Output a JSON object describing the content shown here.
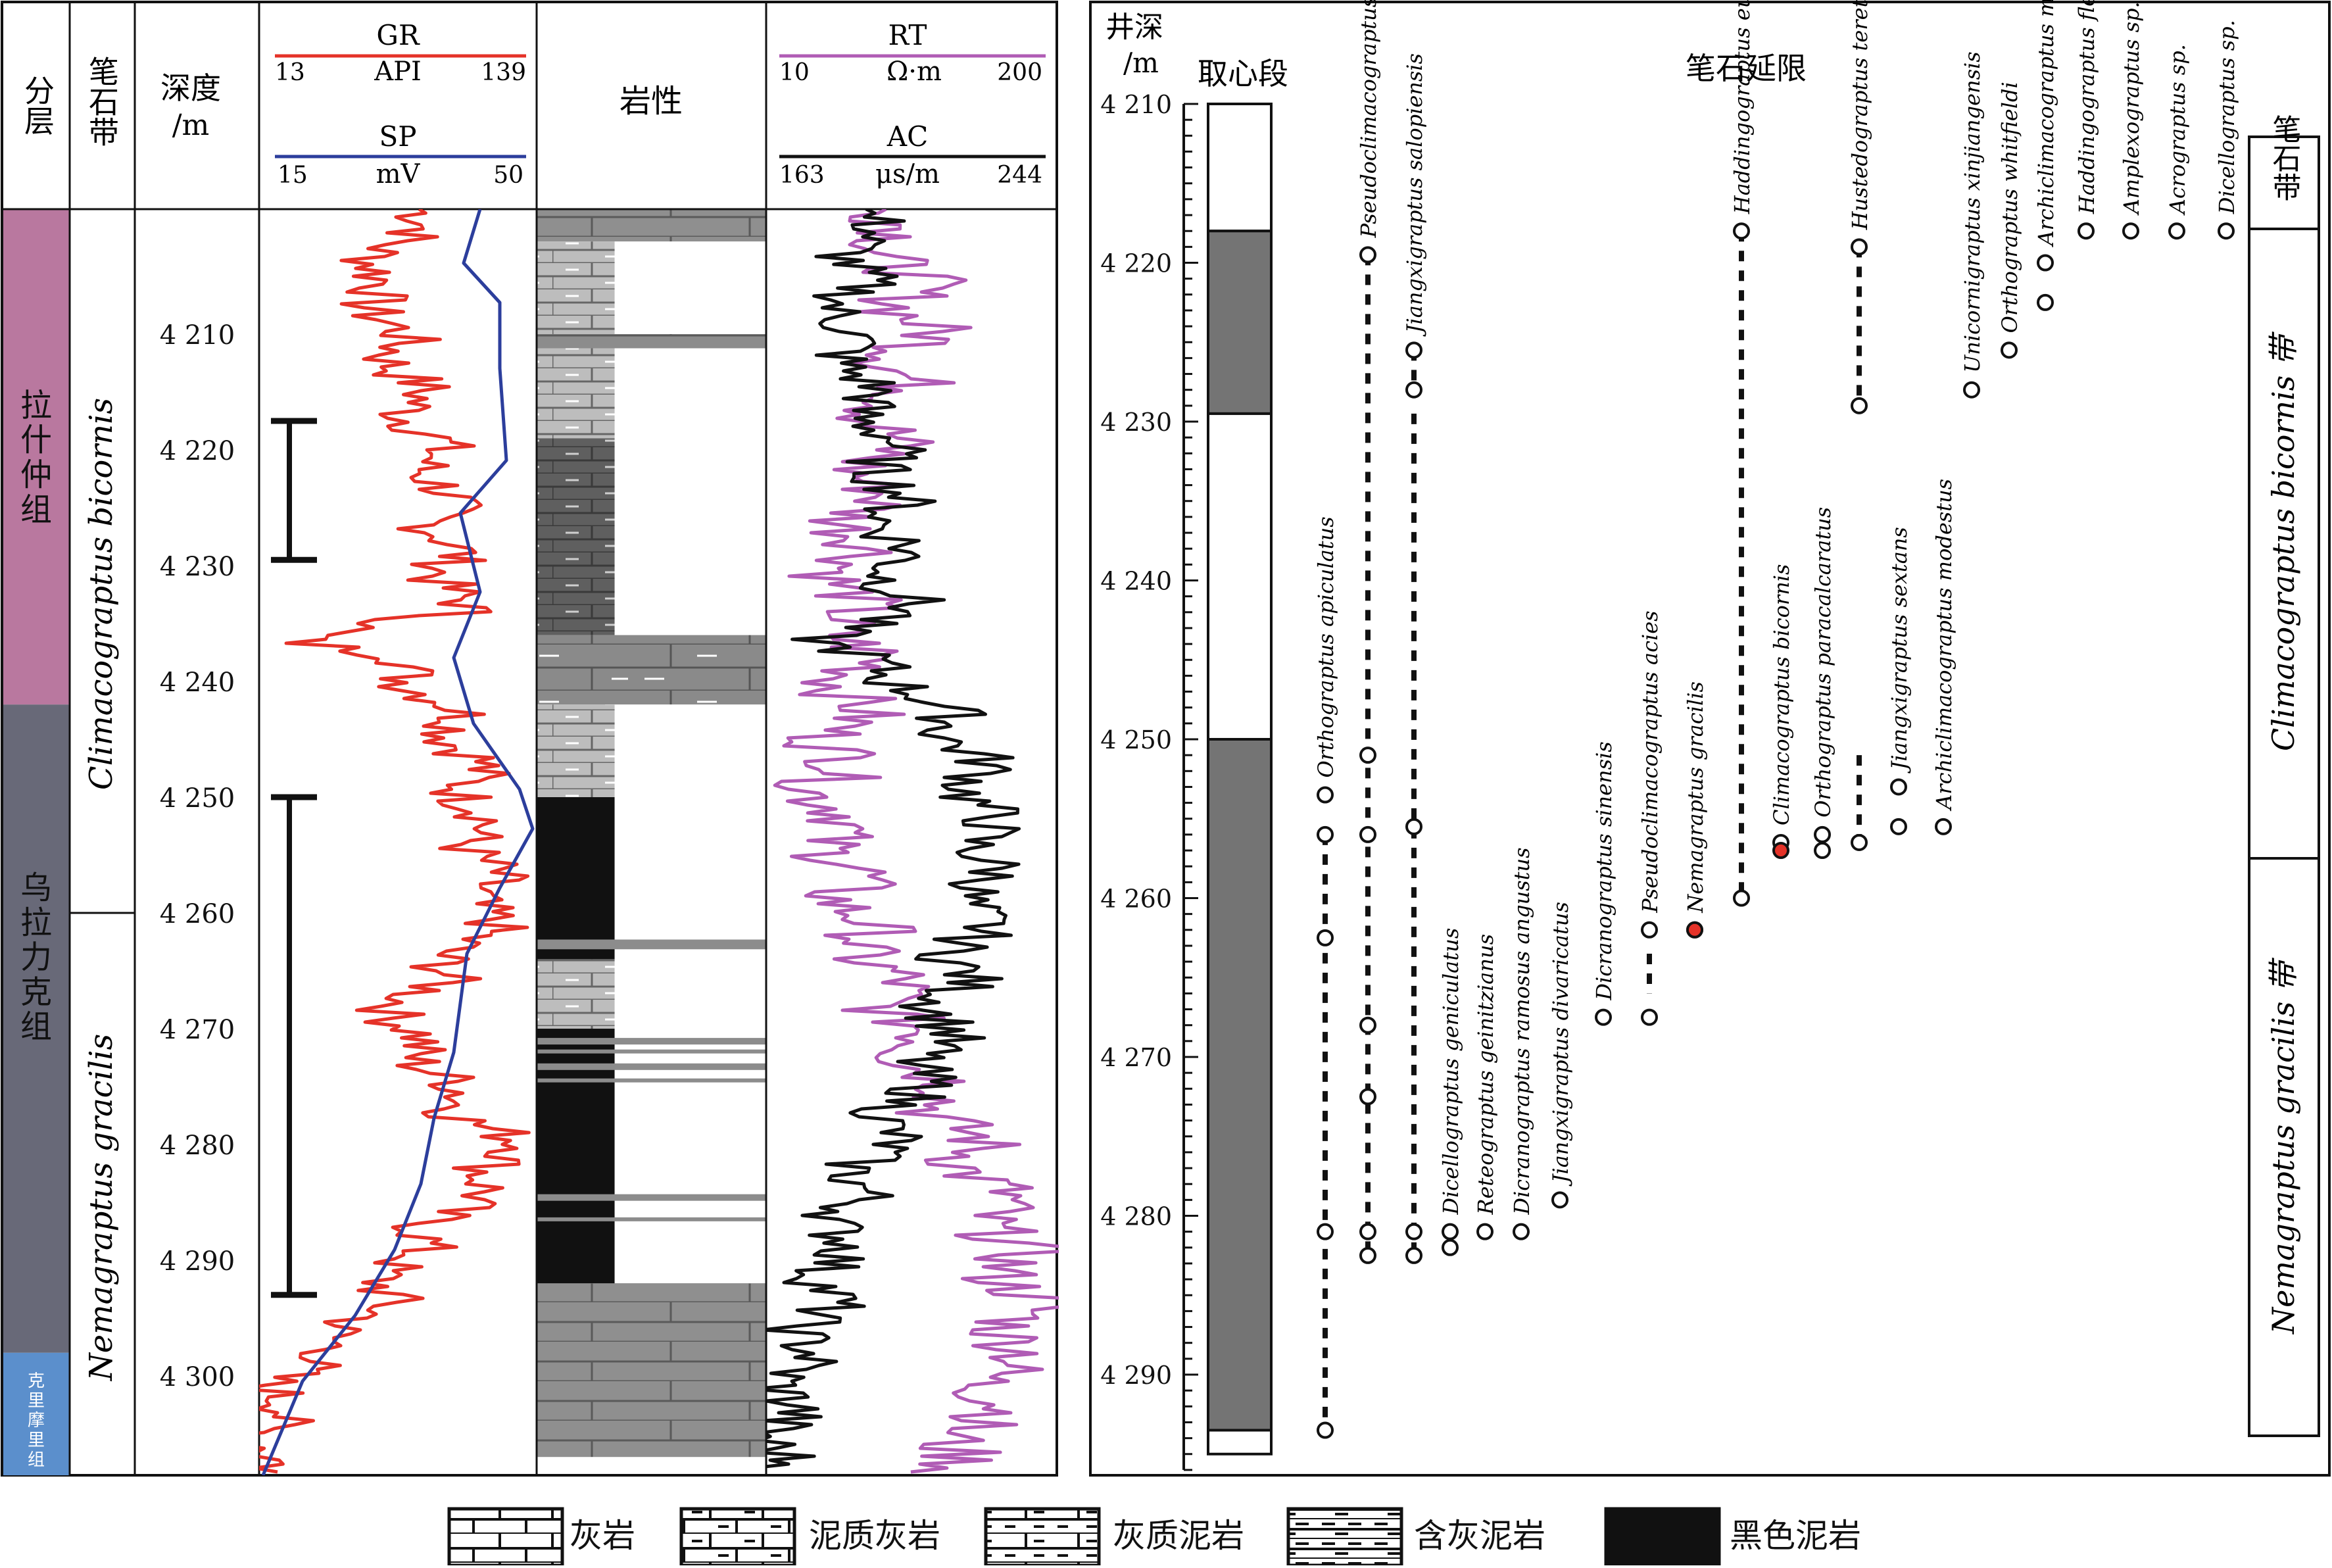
{
  "left_panel": {
    "headers": {
      "layer": "分层",
      "zone": "笔石带",
      "depth": "深度\n/m",
      "lithology": "岩性"
    },
    "gr": {
      "name": "GR",
      "unit": "API",
      "min": "13",
      "max": "139",
      "color": "#e53228"
    },
    "sp": {
      "name": "SP",
      "unit": "mV",
      "min": "15",
      "max": "50",
      "color": "#2c3e9c"
    },
    "rt": {
      "name": "RT",
      "unit": "Ω·m",
      "min": "10",
      "max": "200",
      "color": "#b05cb5"
    },
    "ac": {
      "name": "AC",
      "unit": "μs/m",
      "min": "163",
      "max": "244",
      "color": "#111111"
    },
    "formations": [
      {
        "name": "拉什仲组",
        "top_m": 4198,
        "base_m": 4242,
        "color": "#b9789f"
      },
      {
        "name": "乌拉力克组",
        "top_m": 4242,
        "base_m": 4298,
        "color": "#686978"
      },
      {
        "name": "克里摩里组",
        "top_m": 4298,
        "base_m": 4307,
        "color": "#5b8fcc"
      }
    ],
    "zones": [
      {
        "name": "Climacograptus bicornis",
        "top_m": 4198,
        "base_m": 4260
      },
      {
        "name": "Nemagraptus gracilis",
        "top_m": 4260,
        "base_m": 4307
      }
    ],
    "depth_ticks": [
      "4 210",
      "4 220",
      "4 230",
      "4 240",
      "4 250",
      "4 260",
      "4 270",
      "4 280",
      "4 290",
      "4 300"
    ],
    "core_intervals": [
      [
        4217.5,
        4229.5
      ],
      [
        4250,
        4293
      ]
    ]
  },
  "right_panel": {
    "depth_label": "井深\n/m",
    "core_label": "取心段",
    "range_label": "笔石延限",
    "zone_box_title": "笔石带",
    "zone_upper": "Climacograptus bicornis 带",
    "zone_lower": "Nemagraptus gracilis 带",
    "depth_ticks": [
      "4 210",
      "4 220",
      "4 230",
      "4 240",
      "4 250",
      "4 260",
      "4 270",
      "4 280",
      "4 290"
    ],
    "core_segments": [
      {
        "top_m": 4210,
        "base_m": 4218,
        "fill": "#ffffff"
      },
      {
        "top_m": 4218,
        "base_m": 4229.5,
        "fill": "#747474"
      },
      {
        "top_m": 4229.5,
        "base_m": 4250,
        "fill": "#ffffff"
      },
      {
        "top_m": 4250,
        "base_m": 4293.5,
        "fill": "#747474"
      },
      {
        "top_m": 4293.5,
        "base_m": 4295,
        "fill": "#ffffff"
      }
    ],
    "species": [
      {
        "name": "Orthograptus apiculatus",
        "pts": [
          4253.5,
          4256,
          4262.5,
          4281,
          4293.5
        ],
        "dashed": [
          [
            4256,
            4293.5
          ]
        ]
      },
      {
        "name": "Pseudoclimacograptus scharenbergi",
        "pts": [
          4219.5,
          4251,
          4256,
          4268,
          4272.5,
          4281,
          4282.5
        ],
        "dashed": [
          [
            4219.5,
            4282.5
          ]
        ]
      },
      {
        "name": "Jiangxigraptus salopiensis",
        "pts": [
          4225.5,
          4228,
          4255.5,
          4281,
          4282.5
        ],
        "dashed": [
          [
            4225.5,
            4228
          ],
          [
            4229.5,
            4282.5
          ]
        ]
      },
      {
        "name": "Dicellograptus  geniculatus",
        "pts": [
          4281,
          4282
        ],
        "dashed": []
      },
      {
        "name": "Reteograptus geinitzianus",
        "pts": [
          4281
        ],
        "dashed": []
      },
      {
        "name": "Dicranograptus ramosus angustus",
        "pts": [
          4281
        ],
        "dashed": []
      },
      {
        "name": "Jiangxigraptus divaricatus",
        "pts": [
          4279
        ],
        "dashed": []
      },
      {
        "name": "Dicranograptus sinensis",
        "pts": [
          4267.5
        ],
        "dashed": []
      },
      {
        "name": "Pseudoclimacograptus acies",
        "pts": [
          4262,
          4267.5
        ],
        "dashed": [
          [
            4263.5,
            4266
          ]
        ]
      },
      {
        "name": "Nemagraptus gracilis",
        "pts": [
          4262,
          4262
        ],
        "dashed": [],
        "red": [
          4262
        ]
      },
      {
        "name": "Haddingograptus eurystoma",
        "pts": [
          4218,
          4260
        ],
        "dashed": [
          [
            4218,
            4260
          ]
        ]
      },
      {
        "name": "Climacograptus bicornis",
        "pts": [
          4256.5,
          4257
        ],
        "dashed": [],
        "red": [
          4257
        ]
      },
      {
        "name": "Orthograptus paracalcaratus",
        "pts": [
          4256,
          4257
        ],
        "dashed": []
      },
      {
        "name": "Hustedograptus teretiusculus",
        "pts": [
          4219,
          4229,
          4256.5
        ],
        "dashed": [
          [
            4219,
            4229
          ],
          [
            4251,
            4256.5
          ]
        ]
      },
      {
        "name": "Jiangxigraptus  sextans",
        "pts": [
          4253,
          4255.5
        ],
        "dashed": []
      },
      {
        "name": "Archiclimacograptus modestus",
        "pts": [
          4255.5
        ],
        "dashed": []
      },
      {
        "name": "Unicornigraptus xinjiangensis",
        "pts": [
          4228
        ],
        "dashed": []
      },
      {
        "name": "Orthograptus whitfieldi",
        "pts": [
          4225.5
        ],
        "dashed": []
      },
      {
        "name": "Archiclimacograptus meridionalis",
        "pts": [
          4220,
          4222.5
        ],
        "dashed": []
      },
      {
        "name": "Haddingograptus flexibilis",
        "pts": [
          4218
        ],
        "dashed": []
      },
      {
        "name": "Amplexograptus sp.",
        "pts": [
          4218
        ],
        "dashed": []
      },
      {
        "name": "Acrograptus sp.",
        "pts": [
          4218
        ],
        "dashed": []
      },
      {
        "name": "Dicellograptus sp.",
        "pts": [
          4218
        ],
        "dashed": []
      }
    ]
  },
  "legend": [
    {
      "label": "灰岩",
      "pattern": "limestone"
    },
    {
      "label": "泥质灰岩",
      "pattern": "argillaceous"
    },
    {
      "label": "灰质泥岩",
      "pattern": "calcareous"
    },
    {
      "label": "含灰泥岩",
      "pattern": "marl"
    },
    {
      "label": "黑色泥岩",
      "pattern": "black"
    }
  ]
}
